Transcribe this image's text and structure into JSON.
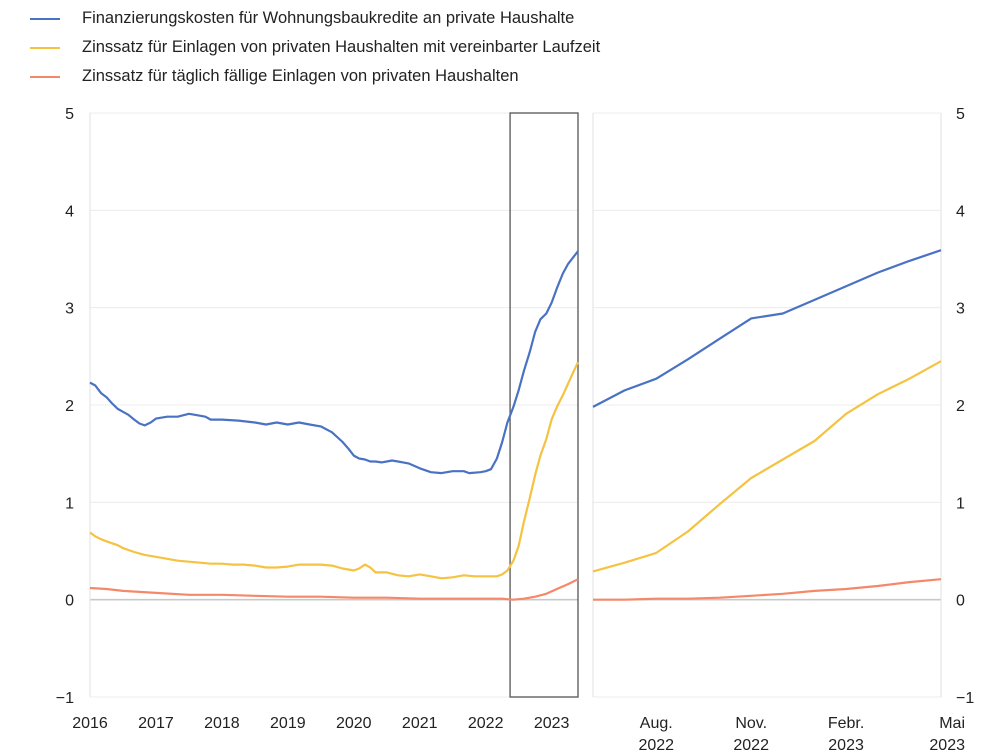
{
  "chart_data": [
    {
      "type": "line",
      "title": "",
      "xlabel": "",
      "ylabel": "",
      "ylim": [
        -1,
        5
      ],
      "yticks": [
        "−1",
        "0",
        "1",
        "2",
        "3",
        "4",
        "5"
      ],
      "xlim": [
        2016,
        2023.4
      ],
      "xticks": [
        "2016",
        "2017",
        "2018",
        "2019",
        "2020",
        "2021",
        "2022",
        "2023"
      ],
      "grid": "horizontal",
      "highlight_range": [
        2022.37,
        2023.4
      ],
      "series": [
        {
          "name": "Finanzierungskosten für Wohnungsbaukredite an private Haushalte",
          "color": "#4a72c4",
          "x": [
            2016.0,
            2016.08,
            2016.17,
            2016.25,
            2016.33,
            2016.42,
            2016.5,
            2016.58,
            2016.67,
            2016.75,
            2016.83,
            2016.92,
            2017.0,
            2017.17,
            2017.33,
            2017.5,
            2017.58,
            2017.75,
            2017.83,
            2018.0,
            2018.25,
            2018.5,
            2018.67,
            2018.83,
            2019.0,
            2019.17,
            2019.33,
            2019.5,
            2019.67,
            2019.83,
            2019.92,
            2020.0,
            2020.08,
            2020.17,
            2020.25,
            2020.33,
            2020.42,
            2020.5,
            2020.58,
            2020.67,
            2020.83,
            2021.0,
            2021.17,
            2021.33,
            2021.5,
            2021.67,
            2021.75,
            2021.92,
            2022.0,
            2022.08,
            2022.17,
            2022.25,
            2022.33,
            2022.42,
            2022.5,
            2022.58,
            2022.67,
            2022.75,
            2022.83,
            2022.92,
            2023.0,
            2023.08,
            2023.17,
            2023.25,
            2023.33,
            2023.4
          ],
          "values": [
            2.23,
            2.2,
            2.12,
            2.08,
            2.02,
            1.96,
            1.93,
            1.9,
            1.85,
            1.81,
            1.79,
            1.82,
            1.86,
            1.88,
            1.88,
            1.91,
            1.9,
            1.88,
            1.85,
            1.85,
            1.84,
            1.82,
            1.8,
            1.82,
            1.8,
            1.82,
            1.8,
            1.78,
            1.72,
            1.62,
            1.55,
            1.48,
            1.45,
            1.44,
            1.42,
            1.42,
            1.41,
            1.42,
            1.43,
            1.42,
            1.4,
            1.35,
            1.31,
            1.3,
            1.32,
            1.32,
            1.3,
            1.31,
            1.32,
            1.34,
            1.45,
            1.62,
            1.82,
            1.98,
            2.15,
            2.35,
            2.55,
            2.75,
            2.88,
            2.94,
            3.05,
            3.2,
            3.35,
            3.45,
            3.52,
            3.58
          ]
        },
        {
          "name": "Zinssatz für Einlagen von privaten Haushalten mit vereinbarter Laufzeit",
          "color": "#f5c242",
          "x": [
            2016.0,
            2016.08,
            2016.17,
            2016.25,
            2016.33,
            2016.42,
            2016.5,
            2016.67,
            2016.83,
            2017.0,
            2017.17,
            2017.33,
            2017.5,
            2017.67,
            2017.83,
            2018.0,
            2018.17,
            2018.33,
            2018.5,
            2018.67,
            2018.83,
            2019.0,
            2019.17,
            2019.33,
            2019.5,
            2019.67,
            2019.83,
            2020.0,
            2020.08,
            2020.17,
            2020.25,
            2020.33,
            2020.5,
            2020.67,
            2020.83,
            2021.0,
            2021.17,
            2021.33,
            2021.5,
            2021.67,
            2021.83,
            2022.0,
            2022.17,
            2022.25,
            2022.33,
            2022.42,
            2022.5,
            2022.58,
            2022.67,
            2022.75,
            2022.83,
            2022.92,
            2023.0,
            2023.08,
            2023.17,
            2023.25,
            2023.33,
            2023.4
          ],
          "values": [
            0.69,
            0.65,
            0.62,
            0.6,
            0.58,
            0.56,
            0.53,
            0.49,
            0.46,
            0.44,
            0.42,
            0.4,
            0.39,
            0.38,
            0.37,
            0.37,
            0.36,
            0.36,
            0.35,
            0.33,
            0.33,
            0.34,
            0.36,
            0.36,
            0.36,
            0.35,
            0.32,
            0.3,
            0.32,
            0.36,
            0.33,
            0.28,
            0.28,
            0.25,
            0.24,
            0.26,
            0.24,
            0.22,
            0.23,
            0.25,
            0.24,
            0.24,
            0.24,
            0.26,
            0.3,
            0.4,
            0.55,
            0.8,
            1.05,
            1.28,
            1.48,
            1.65,
            1.85,
            1.98,
            2.1,
            2.22,
            2.34,
            2.44
          ]
        },
        {
          "name": "Zinssatz für täglich fällige Einlagen von privaten Haushalten",
          "color": "#f4896a",
          "x": [
            2016.0,
            2016.25,
            2016.5,
            2016.75,
            2017.0,
            2017.5,
            2018.0,
            2018.5,
            2019.0,
            2019.5,
            2020.0,
            2020.5,
            2021.0,
            2021.5,
            2022.0,
            2022.25,
            2022.42,
            2022.58,
            2022.75,
            2022.92,
            2023.08,
            2023.25,
            2023.4
          ],
          "values": [
            0.12,
            0.11,
            0.09,
            0.08,
            0.07,
            0.05,
            0.05,
            0.04,
            0.03,
            0.03,
            0.02,
            0.02,
            0.01,
            0.01,
            0.01,
            0.01,
            0.0,
            0.01,
            0.03,
            0.06,
            0.11,
            0.16,
            0.21
          ]
        }
      ]
    },
    {
      "type": "line",
      "title": "",
      "xlabel": "",
      "ylabel": "",
      "ylim": [
        -1,
        5
      ],
      "yticks": [
        "−1",
        "0",
        "1",
        "2",
        "3",
        "4",
        "5"
      ],
      "xlim": [
        "2022-06",
        "2023-05"
      ],
      "xticks": [
        {
          "line1": "Aug.",
          "line2": "2022",
          "date": "2022-08"
        },
        {
          "line1": "Nov.",
          "line2": "2022",
          "date": "2022-11"
        },
        {
          "line1": "Febr.",
          "line2": "2023",
          "date": "2023-02"
        },
        {
          "line1": "Mai",
          "line2": "2023",
          "date": "2023-05"
        }
      ],
      "grid": "horizontal",
      "series": [
        {
          "name": "Finanzierungskosten für Wohnungsbaukredite an private Haushalte",
          "color": "#4a72c4",
          "x": [
            "2022-06",
            "2022-07",
            "2022-08",
            "2022-09",
            "2022-10",
            "2022-11",
            "2022-12",
            "2023-01",
            "2023-02",
            "2023-03",
            "2023-04",
            "2023-05"
          ],
          "values": [
            1.98,
            2.15,
            2.27,
            2.47,
            2.68,
            2.89,
            2.94,
            3.08,
            3.22,
            3.36,
            3.48,
            3.59
          ]
        },
        {
          "name": "Zinssatz für Einlagen von privaten Haushalten mit vereinbarter Laufzeit",
          "color": "#f5c242",
          "x": [
            "2022-06",
            "2022-07",
            "2022-08",
            "2022-09",
            "2022-10",
            "2022-11",
            "2022-12",
            "2023-01",
            "2023-02",
            "2023-03",
            "2023-04",
            "2023-05"
          ],
          "values": [
            0.29,
            0.38,
            0.48,
            0.7,
            0.98,
            1.25,
            1.44,
            1.63,
            1.91,
            2.11,
            2.27,
            2.45
          ]
        },
        {
          "name": "Zinssatz für täglich fällige Einlagen von privaten Haushalten",
          "color": "#f4896a",
          "x": [
            "2022-06",
            "2022-07",
            "2022-08",
            "2022-09",
            "2022-10",
            "2022-11",
            "2022-12",
            "2023-01",
            "2023-02",
            "2023-03",
            "2023-04",
            "2023-05"
          ],
          "values": [
            0.0,
            0.0,
            0.01,
            0.01,
            0.02,
            0.04,
            0.06,
            0.09,
            0.11,
            0.14,
            0.18,
            0.21
          ]
        }
      ]
    }
  ]
}
